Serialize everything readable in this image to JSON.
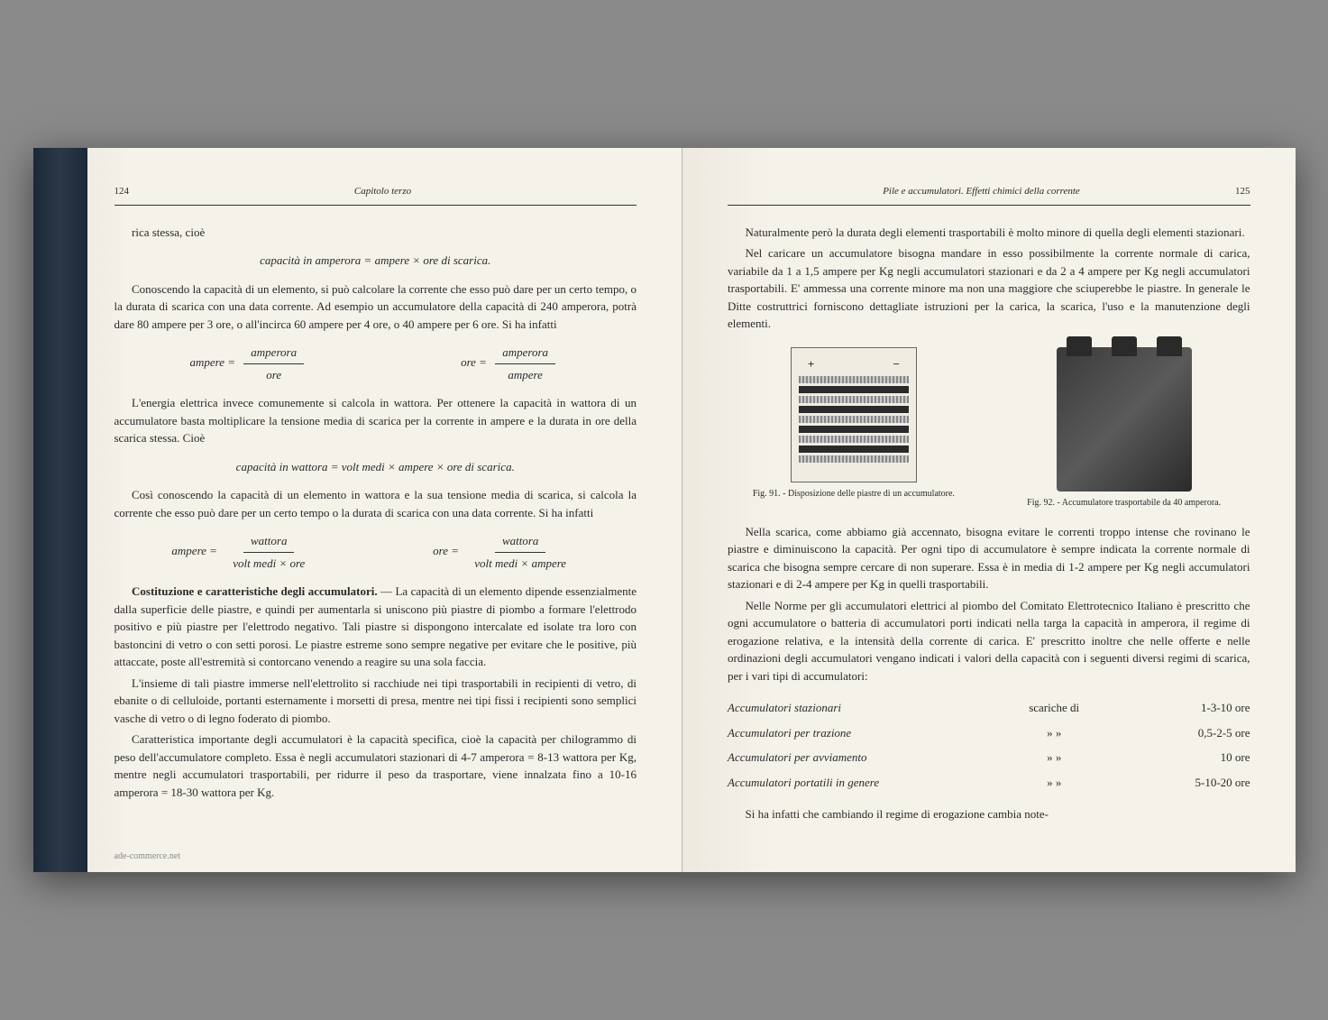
{
  "leftPage": {
    "pageNumber": "124",
    "chapterTitle": "Capitolo terzo",
    "text1": "rica stessa, cioè",
    "formula1": "capacità in amperora = ampere × ore di scarica.",
    "para1": "Conoscendo la capacità di un elemento, si può calcolare la corrente che esso può dare per un certo tempo, o la durata di scarica con una data corrente. Ad esempio un accumulatore della capacità di 240 amperora, potrà dare 80 ampere per 3 ore, o all'incirca 60 ampere per 4 ore, o 40 ampere per 6 ore. Si ha infatti",
    "frac1": {
      "lhs": "ampere =",
      "num": "amperora",
      "den": "ore"
    },
    "frac2": {
      "lhs": "ore =",
      "num": "amperora",
      "den": "ampere"
    },
    "para2": "L'energia elettrica invece comunemente si calcola in wattora. Per ottenere la capacità in wattora di un accumulatore basta moltiplicare la tensione media di scarica per la corrente in ampere e la durata in ore della scarica stessa. Cioè",
    "formula2": "capacità in wattora = volt medi × ampere × ore di scarica.",
    "para3": "Così conoscendo la capacità di un elemento in wattora e la sua tensione media di scarica, si calcola la corrente che esso può dare per un certo tempo o la durata di scarica con una data corrente. Si ha infatti",
    "frac3": {
      "lhs": "ampere =",
      "num": "wattora",
      "den": "volt medi × ore"
    },
    "frac4": {
      "lhs": "ore =",
      "num": "wattora",
      "den": "volt medi × ampere"
    },
    "section1Title": "Costituzione e caratteristiche degli accumulatori.",
    "section1Text": " — La capacità di un elemento dipende essenzialmente dalla superficie delle piastre, e quindi per aumentarla si uniscono più piastre di piombo a formare l'elettrodo positivo e più piastre per l'elettrodo negativo. Tali piastre si dispongono intercalate ed isolate tra loro con bastoncini di vetro o con setti porosi. Le piastre estreme sono sempre negative per evitare che le positive, più attaccate, poste all'estremità si contorcano venendo a reagire su una sola faccia.",
    "para4": "L'insieme di tali piastre immerse nell'elettrolito si racchiude nei tipi trasportabili in recipienti di vetro, di ebanite o di celluloide, portanti esternamente i morsetti di presa, mentre nei tipi fissi i recipienti sono semplici vasche di vetro o di legno foderato di piombo.",
    "para5": "Caratteristica importante degli accumulatori è la capacità specifica, cioè la capacità per chilogrammo di peso dell'accumulatore completo. Essa è negli accumulatori stazionari di 4-7 amperora = 8-13 wattora per Kg, mentre negli accumulatori trasportabili, per ridurre il peso da trasportare, viene innalzata fino a 10-16 amperora = 18-30 wattora per Kg.",
    "watermark": "ade-commerce.net"
  },
  "rightPage": {
    "pageNumber": "125",
    "chapterTitle": "Pile e accumulatori. Effetti chimici della corrente",
    "para1": "Naturalmente però la durata degli elementi trasportabili è molto minore di quella degli elementi stazionari.",
    "para2": "Nel caricare un accumulatore bisogna mandare in esso possibilmente la corrente normale di carica, variabile da 1 a 1,5 ampere per Kg negli accumulatori stazionari e da 2 a 4 ampere per Kg negli accumulatori trasportabili. E' ammessa una corrente minore ma non una maggiore che sciuperebbe le piastre. In generale le Ditte costruttrici forniscono dettagliate istruzioni per la carica, la scarica, l'uso e la manutenzione degli elementi.",
    "fig91": {
      "caption": "Fig. 91. - Disposizione delle piastre di un accumulatore.",
      "plus": "+",
      "minus": "−"
    },
    "fig92": {
      "caption": "Fig. 92. - Accumulatore trasportabile da 40 amperora."
    },
    "para3": "Nella scarica, come abbiamo già accennato, bisogna evitare le correnti troppo intense che rovinano le piastre e diminuiscono la capacità. Per ogni tipo di accumulatore è sempre indicata la corrente normale di scarica che bisogna sempre cercare di non superare. Essa è in media di 1-2 ampere per Kg negli accumulatori stazionari e di 2-4 ampere per Kg in quelli trasportabili.",
    "para4": "Nelle Norme per gli accumulatori elettrici al piombo del Comitato Elettrotecnico Italiano è prescritto che ogni accumulatore o batteria di accumulatori porti indicati nella targa la capacità in amperora, il regime di erogazione relativa, e la intensità della corrente di carica. E' prescritto inoltre che nelle offerte e nelle ordinazioni degli accumulatori vengano indicati i valori della capacità con i seguenti diversi regimi di scarica, per i vari tipi di accumulatori:",
    "dischargeTable": [
      {
        "type": "Accumulatori stazionari",
        "label": "scariche di",
        "hours": "1-3-10 ore"
      },
      {
        "type": "Accumulatori per trazione",
        "label": "»      »",
        "hours": "0,5-2-5 ore"
      },
      {
        "type": "Accumulatori per avviamento",
        "label": "»      »",
        "hours": "10 ore"
      },
      {
        "type": "Accumulatori portatili in genere",
        "label": "»      »",
        "hours": "5-10-20 ore"
      }
    ],
    "para5": "Si ha infatti che cambiando il regime di erogazione cambia note-"
  },
  "colors": {
    "pageBackground": "#f5f2ea",
    "textColor": "#2a2a2a",
    "spineColor": "#1a2838"
  }
}
